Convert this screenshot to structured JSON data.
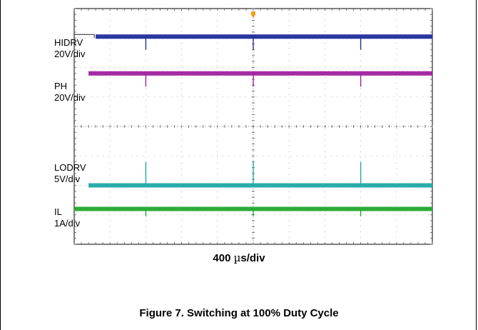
{
  "chart_data": {
    "type": "line",
    "title": "",
    "xlabel": "400 µs/div",
    "time_per_div_us": 400,
    "divisions": {
      "x": 10,
      "y": 8
    },
    "grid": true,
    "trigger_marker_color": "#f0a020",
    "series": [
      {
        "name": "HIDRV",
        "scale": "20V/div",
        "color": "#1f2e9c",
        "level_div": 7.05,
        "starts_at_div": 0.6,
        "spike_times_div": [
          2.0,
          5.0,
          8.0
        ],
        "spike_direction": "down",
        "spike_depth_div": 0.45
      },
      {
        "name": "PH",
        "scale": "20V/div",
        "color": "#a020a0",
        "level_div": 5.8,
        "starts_at_div": 0.4,
        "spike_times_div": [
          2.0,
          5.0,
          8.0
        ],
        "spike_direction": "down",
        "spike_depth_div": 0.45
      },
      {
        "name": "LODRV",
        "scale": "5V/div",
        "color": "#20a8a8",
        "level_div": 2.0,
        "starts_at_div": 0.4,
        "spike_times_div": [
          2.0,
          5.0,
          8.0
        ],
        "spike_direction": "up",
        "spike_depth_div": 0.8
      },
      {
        "name": "IL",
        "scale": "1A/div",
        "color": "#22a82e",
        "level_div": 1.2,
        "starts_at_div": 0.0,
        "spike_times_div": [
          2.0,
          5.0,
          8.0
        ],
        "spike_direction": "down",
        "spike_depth_div": 0.25
      }
    ]
  },
  "labels": {
    "hidrv_name": "HIDRV",
    "hidrv_scale": "20V/div",
    "ph_name": "PH",
    "ph_scale": "20V/div",
    "lodrv_name": "LODRV",
    "lodrv_scale": "5V/div",
    "il_name": "IL",
    "il_scale": "1A/div"
  },
  "timebase": {
    "value": "400 ",
    "unit_prefix": "µ",
    "unit_rest": "s/div"
  },
  "caption": "Figure 7. Switching at 100% Duty Cycle"
}
